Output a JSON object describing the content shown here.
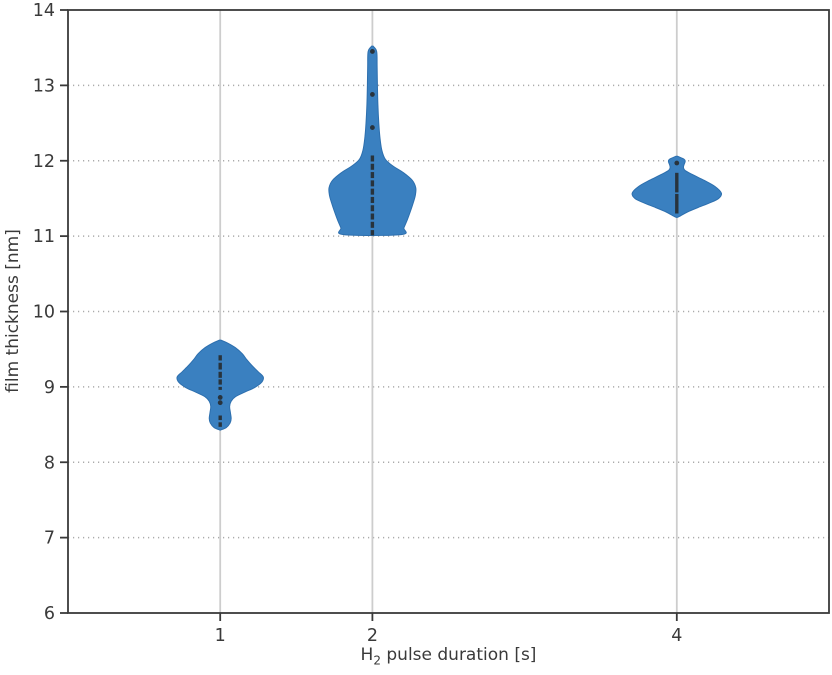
{
  "figure": {
    "background": "#ffffff",
    "ylabel": "film thickness [nm]",
    "xlabel_base": "H",
    "xlabel_sub": "2",
    "xlabel_rest": " pulse duration [s]"
  },
  "chart_data": {
    "type": "violin",
    "title": "",
    "xlabel": "H2 pulse duration [s]",
    "ylabel": "film thickness [nm]",
    "xlim": [
      0,
      5
    ],
    "ylim": [
      6,
      14
    ],
    "grid": {
      "horizontal": "dotted",
      "vertical": "solid"
    },
    "legend": "none",
    "xticks": [
      {
        "value": 1,
        "label": "1"
      },
      {
        "value": 2,
        "label": "2"
      },
      {
        "value": 4,
        "label": "4"
      }
    ],
    "yticks": [
      {
        "value": 6,
        "label": "6"
      },
      {
        "value": 7,
        "label": "7"
      },
      {
        "value": 8,
        "label": "8"
      },
      {
        "value": 9,
        "label": "9"
      },
      {
        "value": 10,
        "label": "10"
      },
      {
        "value": 11,
        "label": "11"
      },
      {
        "value": 12,
        "label": "12"
      },
      {
        "value": 13,
        "label": "13"
      },
      {
        "value": 14,
        "label": "14"
      }
    ],
    "colors": {
      "violin_fill": "#3a80c0",
      "violin_edge": "#2d6fae",
      "inner_marks": "#262626",
      "grid_h": "#ababab",
      "grid_v": "#cdcdcd",
      "spine": "#3a3a3a",
      "text": "#3a3a3a"
    },
    "violins": [
      {
        "position": 1,
        "summary": {
          "min": 8.43,
          "max": 9.62,
          "peak_density_at": 9.13
        },
        "profile": [
          [
            9.62,
            0.005
          ],
          [
            9.58,
            0.05
          ],
          [
            9.52,
            0.1
          ],
          [
            9.44,
            0.145
          ],
          [
            9.36,
            0.175
          ],
          [
            9.28,
            0.21
          ],
          [
            9.2,
            0.25
          ],
          [
            9.13,
            0.283
          ],
          [
            9.06,
            0.272
          ],
          [
            8.99,
            0.225
          ],
          [
            8.93,
            0.16
          ],
          [
            8.87,
            0.1
          ],
          [
            8.81,
            0.072
          ],
          [
            8.74,
            0.062
          ],
          [
            8.66,
            0.067
          ],
          [
            8.58,
            0.072
          ],
          [
            8.52,
            0.065
          ],
          [
            8.46,
            0.04
          ],
          [
            8.43,
            0.005
          ]
        ],
        "flat_bottom": false,
        "sticks": [
          [
            9.42,
            9.35
          ],
          [
            9.32,
            9.23
          ],
          [
            9.2,
            9.12
          ],
          [
            9.1,
            9.03
          ],
          [
            9.0,
            8.96
          ],
          [
            8.62,
            8.56
          ],
          [
            8.53,
            8.47
          ]
        ],
        "dots": [
          8.86,
          8.79
        ]
      },
      {
        "position": 2,
        "summary": {
          "min": 11.02,
          "max": 13.52,
          "peak_density_at": 11.64
        },
        "profile": [
          [
            13.52,
            0.005
          ],
          [
            13.45,
            0.028
          ],
          [
            13.25,
            0.031
          ],
          [
            13.0,
            0.033
          ],
          [
            12.75,
            0.036
          ],
          [
            12.5,
            0.042
          ],
          [
            12.3,
            0.05
          ],
          [
            12.14,
            0.062
          ],
          [
            12.02,
            0.085
          ],
          [
            11.93,
            0.135
          ],
          [
            11.84,
            0.205
          ],
          [
            11.74,
            0.262
          ],
          [
            11.64,
            0.285
          ],
          [
            11.54,
            0.282
          ],
          [
            11.44,
            0.268
          ],
          [
            11.33,
            0.25
          ],
          [
            11.22,
            0.23
          ],
          [
            11.11,
            0.207
          ],
          [
            11.02,
            0.19
          ]
        ],
        "flat_bottom": true,
        "sticks": [
          [
            12.07,
            11.99
          ],
          [
            11.96,
            11.88
          ],
          [
            11.85,
            11.77
          ],
          [
            11.74,
            11.66
          ],
          [
            11.63,
            11.55
          ],
          [
            11.52,
            11.44
          ],
          [
            11.41,
            11.33
          ],
          [
            11.3,
            11.22
          ],
          [
            11.19,
            11.11
          ],
          [
            11.08,
            11.01
          ]
        ],
        "dots": [
          13.45,
          12.88,
          12.44
        ]
      },
      {
        "position": 4,
        "summary": {
          "min": 11.25,
          "max": 12.06,
          "peak_density_at": 11.57
        },
        "profile": [
          [
            12.06,
            0.005
          ],
          [
            12.02,
            0.048
          ],
          [
            11.99,
            0.055
          ],
          [
            11.95,
            0.048
          ],
          [
            11.91,
            0.044
          ],
          [
            11.87,
            0.055
          ],
          [
            11.81,
            0.11
          ],
          [
            11.74,
            0.18
          ],
          [
            11.66,
            0.25
          ],
          [
            11.57,
            0.293
          ],
          [
            11.5,
            0.275
          ],
          [
            11.44,
            0.215
          ],
          [
            11.38,
            0.14
          ],
          [
            11.32,
            0.07
          ],
          [
            11.27,
            0.025
          ],
          [
            11.25,
            0.005
          ]
        ],
        "flat_bottom": false,
        "sticks": [
          [
            11.84,
            11.58
          ],
          [
            11.56,
            11.3
          ]
        ],
        "dots": [
          11.97
        ]
      }
    ]
  }
}
